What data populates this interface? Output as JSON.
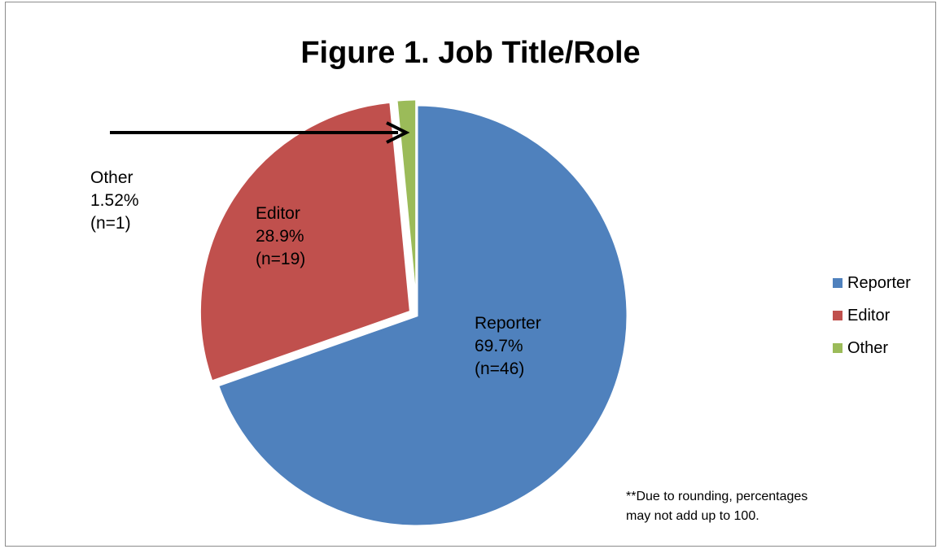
{
  "chart_data": {
    "type": "pie",
    "title": "Figure 1. Job Title/Role",
    "slices": [
      {
        "name": "Reporter",
        "value": 69.7,
        "n": 46,
        "color": "#4f81bd",
        "label_lines": [
          "Reporter",
          "69.7%",
          "(n=46)"
        ]
      },
      {
        "name": "Editor",
        "value": 28.9,
        "n": 19,
        "color": "#c0504d",
        "label_lines": [
          "Editor",
          "28.9%",
          "(n=19)"
        ]
      },
      {
        "name": "Other",
        "value": 1.52,
        "n": 1,
        "color": "#9bbb59",
        "label_lines": [
          "Other",
          "1.52%",
          "(n=1)"
        ]
      }
    ],
    "legend": {
      "position": "right",
      "entries": [
        "Reporter",
        "Editor",
        "Other"
      ]
    },
    "annotations": {
      "footnote_lines": [
        "**Due to rounding, percentages",
        "may not add up to 100."
      ]
    }
  }
}
